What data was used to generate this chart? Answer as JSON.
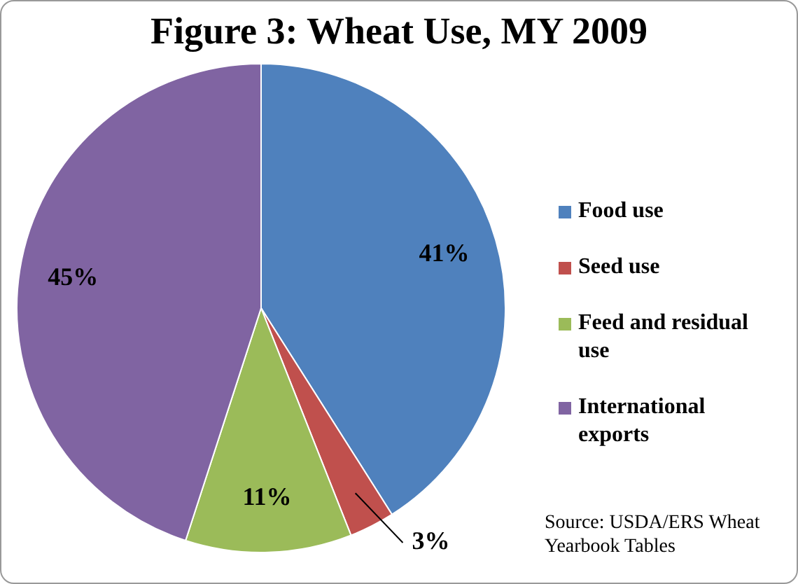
{
  "chart_data": {
    "type": "pie",
    "title": "Figure 3:  Wheat Use, MY 2009",
    "categories": [
      "Food use",
      "Seed use",
      "Feed and residual use",
      "International exports"
    ],
    "values": [
      41,
      3,
      11,
      45
    ],
    "colors": [
      "#4f81bd",
      "#c0504d",
      "#9bbb59",
      "#8064a2"
    ],
    "value_labels": [
      "41%",
      "3%",
      "11%",
      "45%"
    ],
    "legend": "right",
    "annotations": [
      "Source:  USDA/ERS Wheat Yearbook Tables"
    ]
  }
}
